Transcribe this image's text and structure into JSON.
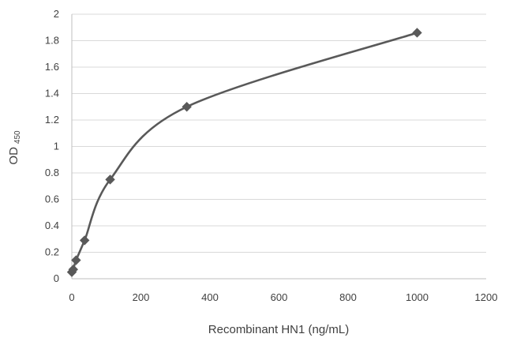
{
  "chart_data": {
    "type": "scatter",
    "title": "",
    "xlabel": "Recombinant HN1 (ng/mL)",
    "ylabel": "OD",
    "ylabel_subscript": "450",
    "xlim": [
      0,
      1200
    ],
    "ylim": [
      0,
      2
    ],
    "xticks": [
      0,
      200,
      400,
      600,
      800,
      1000,
      1200
    ],
    "yticks": [
      0,
      0.2,
      0.4,
      0.6,
      0.8,
      1,
      1.2,
      1.4,
      1.6,
      1.8,
      2
    ],
    "grid": "horizontal",
    "smooth_line": true,
    "marker": "diamond",
    "series": [
      {
        "x": [
          0,
          4.1,
          12.3,
          37,
          111,
          333,
          1000
        ],
        "y": [
          0.05,
          0.07,
          0.14,
          0.29,
          0.75,
          1.3,
          1.86
        ]
      }
    ],
    "colors": {
      "series": "#595959",
      "grid": "#d9d9d9",
      "axis": "#bfbfbf",
      "text": "#404040"
    }
  }
}
